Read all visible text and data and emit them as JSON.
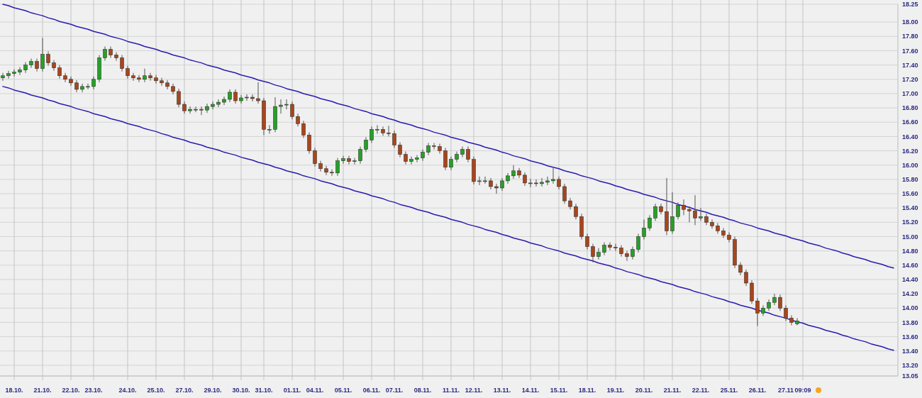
{
  "chart_data": {
    "type": "candlestick",
    "categories": [
      null,
      null,
      "18.10.",
      null,
      null,
      null,
      null,
      "21.10.",
      null,
      null,
      null,
      null,
      "22.10.",
      null,
      null,
      null,
      "23.10.",
      null,
      null,
      null,
      null,
      null,
      "24.10.",
      null,
      null,
      null,
      null,
      "25.10.",
      null,
      null,
      null,
      null,
      "27.10.",
      null,
      null,
      null,
      null,
      "29.10.",
      null,
      null,
      null,
      null,
      "30.10.",
      null,
      null,
      null,
      "31.10.",
      null,
      null,
      null,
      null,
      "01.11.",
      null,
      null,
      null,
      "04.11.",
      null,
      null,
      null,
      null,
      "05.11.",
      null,
      null,
      null,
      null,
      "06.11.",
      null,
      null,
      null,
      "07.11.",
      null,
      null,
      null,
      null,
      "08.11.",
      null,
      null,
      null,
      null,
      "11.11.",
      null,
      null,
      null,
      "12.11.",
      null,
      null,
      null,
      null,
      "13.11.",
      null,
      null,
      null,
      null,
      "14.11.",
      null,
      null,
      null,
      null,
      "15.11.",
      null,
      null,
      null,
      null,
      "18.11.",
      null,
      null,
      null,
      null,
      "19.11.",
      null,
      null,
      null,
      null,
      "20.11.",
      null,
      null,
      null,
      null,
      "21.11.",
      null,
      null,
      null,
      null,
      "22.11.",
      null,
      null,
      null,
      null,
      "25.11.",
      null,
      null,
      null,
      null,
      "26.11.",
      null,
      null,
      null,
      null,
      "27.11",
      null,
      null,
      "09:09",
      null,
      null,
      null,
      null,
      null,
      null,
      null,
      null,
      null,
      null,
      null,
      null,
      null,
      null,
      null,
      null
    ],
    "ohlc": [
      [
        17.22,
        17.29,
        17.18,
        17.25
      ],
      [
        17.25,
        17.32,
        17.21,
        17.28
      ],
      [
        17.28,
        17.34,
        17.24,
        17.3
      ],
      [
        17.3,
        17.37,
        17.26,
        17.33
      ],
      [
        17.33,
        17.44,
        17.29,
        17.4
      ],
      [
        17.4,
        17.49,
        17.36,
        17.45
      ],
      [
        17.45,
        17.49,
        17.31,
        17.35
      ],
      [
        17.35,
        17.78,
        17.31,
        17.55
      ],
      [
        17.55,
        17.59,
        17.39,
        17.43
      ],
      [
        17.43,
        17.47,
        17.32,
        17.36
      ],
      [
        17.36,
        17.4,
        17.21,
        17.25
      ],
      [
        17.25,
        17.29,
        17.16,
        17.2
      ],
      [
        17.2,
        17.24,
        17.11,
        17.15
      ],
      [
        17.15,
        17.19,
        17.02,
        17.06
      ],
      [
        17.06,
        17.14,
        17.02,
        17.1
      ],
      [
        17.1,
        17.14,
        17.06,
        17.1
      ],
      [
        17.1,
        17.24,
        17.06,
        17.2
      ],
      [
        17.2,
        17.54,
        17.16,
        17.5
      ],
      [
        17.5,
        17.66,
        17.46,
        17.62
      ],
      [
        17.62,
        17.66,
        17.5,
        17.54
      ],
      [
        17.54,
        17.58,
        17.46,
        17.5
      ],
      [
        17.5,
        17.54,
        17.31,
        17.35
      ],
      [
        17.35,
        17.39,
        17.21,
        17.25
      ],
      [
        17.25,
        17.29,
        17.18,
        17.22
      ],
      [
        17.22,
        17.26,
        17.16,
        17.2
      ],
      [
        17.2,
        17.35,
        17.16,
        17.25
      ],
      [
        17.25,
        17.29,
        17.18,
        17.22
      ],
      [
        17.22,
        17.26,
        17.14,
        17.18
      ],
      [
        17.18,
        17.22,
        17.11,
        17.15
      ],
      [
        17.15,
        17.19,
        17.06,
        17.1
      ],
      [
        17.1,
        17.14,
        16.99,
        17.03
      ],
      [
        17.03,
        17.07,
        16.81,
        16.85
      ],
      [
        16.85,
        16.89,
        16.72,
        16.76
      ],
      [
        16.76,
        16.82,
        16.72,
        16.78
      ],
      [
        16.78,
        16.82,
        16.74,
        16.78
      ],
      [
        16.78,
        16.82,
        16.7,
        16.77
      ],
      [
        16.77,
        16.86,
        16.73,
        16.82
      ],
      [
        16.82,
        16.89,
        16.78,
        16.85
      ],
      [
        16.85,
        16.92,
        16.81,
        16.88
      ],
      [
        16.88,
        16.96,
        16.84,
        16.92
      ],
      [
        16.92,
        17.06,
        16.88,
        17.02
      ],
      [
        17.02,
        17.06,
        16.86,
        16.9
      ],
      [
        16.9,
        16.98,
        16.86,
        16.94
      ],
      [
        16.94,
        16.99,
        16.9,
        16.95
      ],
      [
        16.95,
        16.99,
        16.89,
        16.93
      ],
      [
        16.93,
        17.16,
        16.86,
        16.9
      ],
      [
        16.9,
        16.94,
        16.42,
        16.5
      ],
      [
        16.5,
        16.56,
        16.44,
        16.5
      ],
      [
        16.5,
        16.95,
        16.46,
        16.82
      ],
      [
        16.82,
        16.92,
        16.72,
        16.84
      ],
      [
        16.84,
        16.92,
        16.78,
        16.85
      ],
      [
        16.85,
        16.89,
        16.64,
        16.68
      ],
      [
        16.68,
        16.72,
        16.54,
        16.58
      ],
      [
        16.58,
        16.62,
        16.38,
        16.42
      ],
      [
        16.42,
        16.46,
        16.16,
        16.2
      ],
      [
        16.2,
        16.24,
        15.98,
        16.02
      ],
      [
        16.02,
        16.06,
        15.91,
        15.95
      ],
      [
        15.95,
        15.99,
        15.86,
        15.9
      ],
      [
        15.9,
        15.94,
        15.85,
        15.89
      ],
      [
        15.89,
        16.1,
        15.85,
        16.06
      ],
      [
        16.06,
        16.13,
        16.02,
        16.09
      ],
      [
        16.09,
        16.13,
        16.01,
        16.05
      ],
      [
        16.05,
        16.1,
        16.01,
        16.06
      ],
      [
        16.06,
        16.26,
        16.02,
        16.22
      ],
      [
        16.22,
        16.39,
        16.18,
        16.35
      ],
      [
        16.35,
        16.54,
        16.31,
        16.5
      ],
      [
        16.5,
        16.56,
        16.44,
        16.5
      ],
      [
        16.5,
        16.54,
        16.41,
        16.45
      ],
      [
        16.45,
        16.55,
        16.4,
        16.44
      ],
      [
        16.44,
        16.48,
        16.24,
        16.28
      ],
      [
        16.28,
        16.32,
        16.11,
        16.15
      ],
      [
        16.15,
        16.19,
        16.01,
        16.05
      ],
      [
        16.05,
        16.12,
        16.01,
        16.08
      ],
      [
        16.08,
        16.14,
        16.04,
        16.1
      ],
      [
        16.1,
        16.22,
        16.06,
        16.18
      ],
      [
        16.18,
        16.31,
        16.14,
        16.27
      ],
      [
        16.27,
        16.31,
        16.22,
        16.26
      ],
      [
        16.26,
        16.3,
        16.16,
        16.2
      ],
      [
        16.2,
        16.24,
        15.93,
        15.97
      ],
      [
        15.97,
        16.12,
        15.93,
        16.08
      ],
      [
        16.08,
        16.19,
        16.04,
        16.15
      ],
      [
        16.15,
        16.26,
        16.11,
        16.22
      ],
      [
        16.22,
        16.26,
        16.04,
        16.08
      ],
      [
        16.08,
        16.12,
        15.73,
        15.77
      ],
      [
        15.77,
        15.84,
        15.72,
        15.78
      ],
      [
        15.78,
        15.84,
        15.74,
        15.78
      ],
      [
        15.78,
        15.82,
        15.66,
        15.7
      ],
      [
        15.7,
        15.74,
        15.6,
        15.68
      ],
      [
        15.68,
        15.82,
        15.64,
        15.78
      ],
      [
        15.78,
        15.89,
        15.74,
        15.85
      ],
      [
        15.85,
        16.0,
        15.81,
        15.92
      ],
      [
        15.92,
        15.96,
        15.82,
        15.86
      ],
      [
        15.86,
        15.9,
        15.71,
        15.75
      ],
      [
        15.75,
        15.81,
        15.69,
        15.75
      ],
      [
        15.75,
        15.8,
        15.7,
        15.74
      ],
      [
        15.74,
        15.82,
        15.7,
        15.76
      ],
      [
        15.76,
        15.84,
        15.72,
        15.78
      ],
      [
        15.78,
        15.96,
        15.74,
        15.8
      ],
      [
        15.8,
        15.84,
        15.66,
        15.7
      ],
      [
        15.7,
        15.74,
        15.46,
        15.5
      ],
      [
        15.5,
        15.54,
        15.38,
        15.42
      ],
      [
        15.42,
        15.46,
        15.24,
        15.28
      ],
      [
        15.28,
        15.32,
        14.96,
        15.0
      ],
      [
        15.0,
        15.04,
        14.82,
        14.86
      ],
      [
        14.86,
        14.9,
        14.64,
        14.72
      ],
      [
        14.72,
        14.84,
        14.68,
        14.78
      ],
      [
        14.78,
        14.92,
        14.74,
        14.88
      ],
      [
        14.88,
        14.92,
        14.81,
        14.85
      ],
      [
        14.85,
        14.9,
        14.8,
        14.84
      ],
      [
        14.84,
        14.88,
        14.72,
        14.76
      ],
      [
        14.76,
        14.8,
        14.66,
        14.72
      ],
      [
        14.72,
        14.86,
        14.68,
        14.82
      ],
      [
        14.82,
        15.04,
        14.78,
        15.0
      ],
      [
        15.0,
        15.24,
        14.96,
        15.12
      ],
      [
        15.12,
        15.3,
        15.08,
        15.26
      ],
      [
        15.26,
        15.46,
        15.22,
        15.42
      ],
      [
        15.42,
        15.46,
        15.31,
        15.35
      ],
      [
        15.35,
        15.82,
        15.02,
        15.08
      ],
      [
        15.08,
        15.62,
        15.04,
        15.28
      ],
      [
        15.28,
        15.48,
        15.24,
        15.44
      ],
      [
        15.44,
        15.52,
        15.3,
        15.38
      ],
      [
        15.38,
        15.42,
        15.2,
        15.36
      ],
      [
        15.36,
        15.58,
        15.16,
        15.26
      ],
      [
        15.26,
        15.4,
        15.22,
        15.28
      ],
      [
        15.28,
        15.32,
        15.16,
        15.2
      ],
      [
        15.2,
        15.24,
        15.11,
        15.15
      ],
      [
        15.15,
        15.19,
        15.04,
        15.08
      ],
      [
        15.08,
        15.12,
        14.98,
        15.02
      ],
      [
        15.02,
        15.06,
        14.92,
        14.96
      ],
      [
        14.96,
        15.0,
        14.56,
        14.6
      ],
      [
        14.6,
        14.64,
        14.46,
        14.5
      ],
      [
        14.5,
        14.54,
        14.31,
        14.35
      ],
      [
        14.35,
        14.39,
        14.06,
        14.1
      ],
      [
        14.1,
        14.14,
        13.75,
        13.93
      ],
      [
        13.93,
        14.04,
        13.89,
        14.0
      ],
      [
        14.0,
        14.12,
        13.96,
        14.08
      ],
      [
        14.08,
        14.2,
        14.04,
        14.15
      ],
      [
        14.15,
        14.19,
        13.96,
        14.0
      ],
      [
        14.0,
        14.04,
        13.82,
        13.86
      ],
      [
        13.86,
        13.9,
        13.76,
        13.8
      ],
      [
        13.78,
        13.86,
        13.76,
        13.82
      ],
      null,
      null,
      null,
      null,
      null,
      null,
      null,
      null,
      null,
      null,
      null,
      null,
      null,
      null,
      null,
      null,
      null
    ],
    "series": [
      {
        "type": "line",
        "color": "#2a1cb0",
        "values": [
          18.25,
          18.23,
          18.2,
          18.18,
          18.16,
          18.13,
          18.11,
          18.09,
          18.06,
          18.04,
          18.01,
          17.99,
          17.97,
          17.94,
          17.92,
          17.9,
          17.87,
          17.85,
          17.83,
          17.8,
          17.78,
          17.76,
          17.73,
          17.71,
          17.69,
          17.66,
          17.64,
          17.62,
          17.59,
          17.57,
          17.54,
          17.52,
          17.5,
          17.47,
          17.45,
          17.43,
          17.4,
          17.38,
          17.36,
          17.33,
          17.31,
          17.29,
          17.26,
          17.24,
          17.22,
          17.19,
          17.17,
          17.15,
          17.12,
          17.1,
          17.07,
          17.05,
          17.03,
          17.0,
          16.98,
          16.96,
          16.93,
          16.91,
          16.89,
          16.86,
          16.84,
          16.82,
          16.79,
          16.77,
          16.75,
          16.72,
          16.7,
          16.68,
          16.65,
          16.63,
          16.6,
          16.58,
          16.56,
          16.53,
          16.51,
          16.49,
          16.46,
          16.44,
          16.42,
          16.39,
          16.37,
          16.35,
          16.32,
          16.3,
          16.28,
          16.25,
          16.23,
          16.21,
          16.18,
          16.16,
          16.13,
          16.11,
          16.09,
          16.06,
          16.04,
          16.02,
          15.99,
          15.97,
          15.95,
          15.92,
          15.9,
          15.88,
          15.85,
          15.83,
          15.81,
          15.78,
          15.76,
          15.74,
          15.71,
          15.69,
          15.66,
          15.64,
          15.62,
          15.59,
          15.57,
          15.55,
          15.52,
          15.5,
          15.48,
          15.45,
          15.43,
          15.41,
          15.38,
          15.36,
          15.34,
          15.31,
          15.29,
          15.27,
          15.24,
          15.22,
          15.19,
          15.17,
          15.15,
          15.12,
          15.1,
          15.08,
          15.05,
          15.03,
          15.01,
          14.98,
          14.96,
          14.94,
          14.91,
          14.89,
          14.87,
          14.84,
          14.82,
          14.8,
          14.77,
          14.75,
          14.72,
          14.7,
          14.68,
          14.65,
          14.63,
          14.61,
          14.58,
          14.56
        ]
      },
      {
        "type": "line",
        "color": "#2a1cb0",
        "values": [
          17.1,
          17.08,
          17.05,
          17.03,
          17.01,
          16.98,
          16.96,
          16.94,
          16.91,
          16.89,
          16.86,
          16.84,
          16.82,
          16.79,
          16.77,
          16.75,
          16.72,
          16.7,
          16.68,
          16.65,
          16.63,
          16.61,
          16.58,
          16.56,
          16.54,
          16.51,
          16.49,
          16.47,
          16.44,
          16.42,
          16.39,
          16.37,
          16.35,
          16.32,
          16.3,
          16.28,
          16.25,
          16.23,
          16.21,
          16.18,
          16.16,
          16.14,
          16.11,
          16.09,
          16.07,
          16.04,
          16.02,
          16.0,
          15.97,
          15.95,
          15.92,
          15.9,
          15.88,
          15.85,
          15.83,
          15.81,
          15.78,
          15.76,
          15.74,
          15.71,
          15.69,
          15.67,
          15.64,
          15.62,
          15.6,
          15.57,
          15.55,
          15.53,
          15.5,
          15.48,
          15.45,
          15.43,
          15.41,
          15.38,
          15.36,
          15.34,
          15.31,
          15.29,
          15.27,
          15.24,
          15.22,
          15.2,
          15.17,
          15.15,
          15.13,
          15.1,
          15.08,
          15.06,
          15.03,
          15.01,
          14.98,
          14.96,
          14.94,
          14.91,
          14.89,
          14.87,
          14.84,
          14.82,
          14.8,
          14.77,
          14.75,
          14.73,
          14.7,
          14.68,
          14.66,
          14.63,
          14.61,
          14.59,
          14.56,
          14.54,
          14.51,
          14.49,
          14.47,
          14.44,
          14.42,
          14.4,
          14.37,
          14.35,
          14.33,
          14.3,
          14.28,
          14.26,
          14.23,
          14.21,
          14.19,
          14.16,
          14.14,
          14.12,
          14.09,
          14.07,
          14.04,
          14.02,
          14.0,
          13.97,
          13.95,
          13.93,
          13.9,
          13.88,
          13.86,
          13.83,
          13.81,
          13.79,
          13.76,
          13.74,
          13.72,
          13.69,
          13.67,
          13.65,
          13.62,
          13.6,
          13.57,
          13.55,
          13.53,
          13.5,
          13.48,
          13.46,
          13.43,
          13.41
        ]
      }
    ],
    "ylim": [
      13.05,
      18.25
    ],
    "yticks": [
      13.05,
      {
        "value": 13.2,
        "label": "13.20"
      },
      {
        "value": 13.4,
        "label": "13.40"
      },
      {
        "value": 13.6,
        "label": "13.60"
      },
      {
        "value": 13.8,
        "label": "13.80"
      },
      {
        "value": 14.0,
        "label": "14.00"
      },
      {
        "value": 14.2,
        "label": "14.20"
      },
      {
        "value": 14.4,
        "label": "14.40"
      },
      {
        "value": 14.6,
        "label": "14.60"
      },
      {
        "value": 14.8,
        "label": "14.80"
      },
      {
        "value": 15.0,
        "label": "15.00"
      },
      {
        "value": 15.2,
        "label": "15.20"
      },
      {
        "value": 15.4,
        "label": "15.40"
      },
      {
        "value": 15.6,
        "label": "15.60"
      },
      {
        "value": 15.8,
        "label": "15.80"
      },
      {
        "value": 16.0,
        "label": "16.00"
      },
      {
        "value": 16.2,
        "label": "16.20"
      },
      {
        "value": 16.4,
        "label": "16.40"
      },
      {
        "value": 16.6,
        "label": "16.60"
      },
      {
        "value": 16.8,
        "label": "16.80"
      },
      {
        "value": 17.0,
        "label": "17.00"
      },
      {
        "value": 17.2,
        "label": "17.20"
      },
      {
        "value": 17.4,
        "label": "17.40"
      },
      {
        "value": 17.6,
        "label": "17.60"
      },
      {
        "value": 17.8,
        "label": "17.80"
      },
      {
        "value": 18.0,
        "label": "18.00"
      },
      18.25
    ],
    "grid": true
  }
}
